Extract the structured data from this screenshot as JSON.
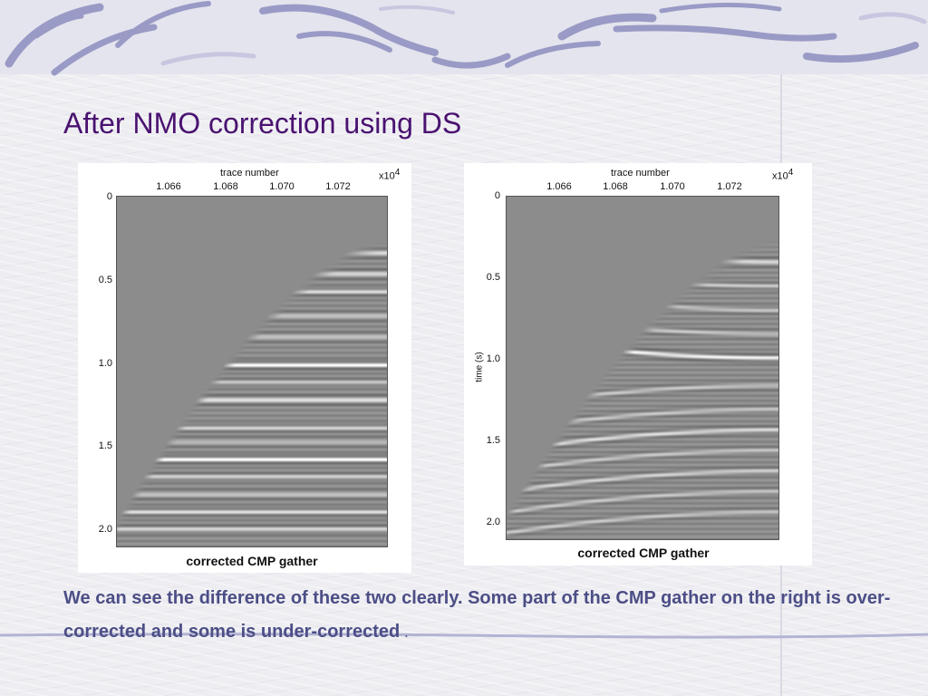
{
  "slide": {
    "title": "After NMO correction using DS",
    "body": "We can see the difference of these two clearly. Some part of the CMP gather on the right is over-corrected and some is under-corrected",
    "body_tail": "."
  },
  "figures": [
    {
      "axis_title_x": "trace number",
      "x_multiplier": "x10",
      "x_multiplier_exp": "4",
      "x_ticks": [
        "1.066",
        "1.068",
        "1.070",
        "1.072"
      ],
      "y_ticks": [
        "0",
        "0.5",
        "1.0",
        "1.5",
        "2.0"
      ],
      "y_label": "",
      "caption": "corrected CMP gather"
    },
    {
      "axis_title_x": "trace number",
      "x_multiplier": "x10",
      "x_multiplier_exp": "4",
      "x_ticks": [
        "1.066",
        "1.068",
        "1.070",
        "1.072"
      ],
      "y_ticks": [
        "0",
        "0.5",
        "1.0",
        "1.5",
        "2.0"
      ],
      "y_label": "time (s)",
      "caption": "corrected CMP gather"
    }
  ],
  "colors": {
    "title": "#4a1270",
    "body": "#4c4e86",
    "seismic_background": "#8c8c8c"
  }
}
